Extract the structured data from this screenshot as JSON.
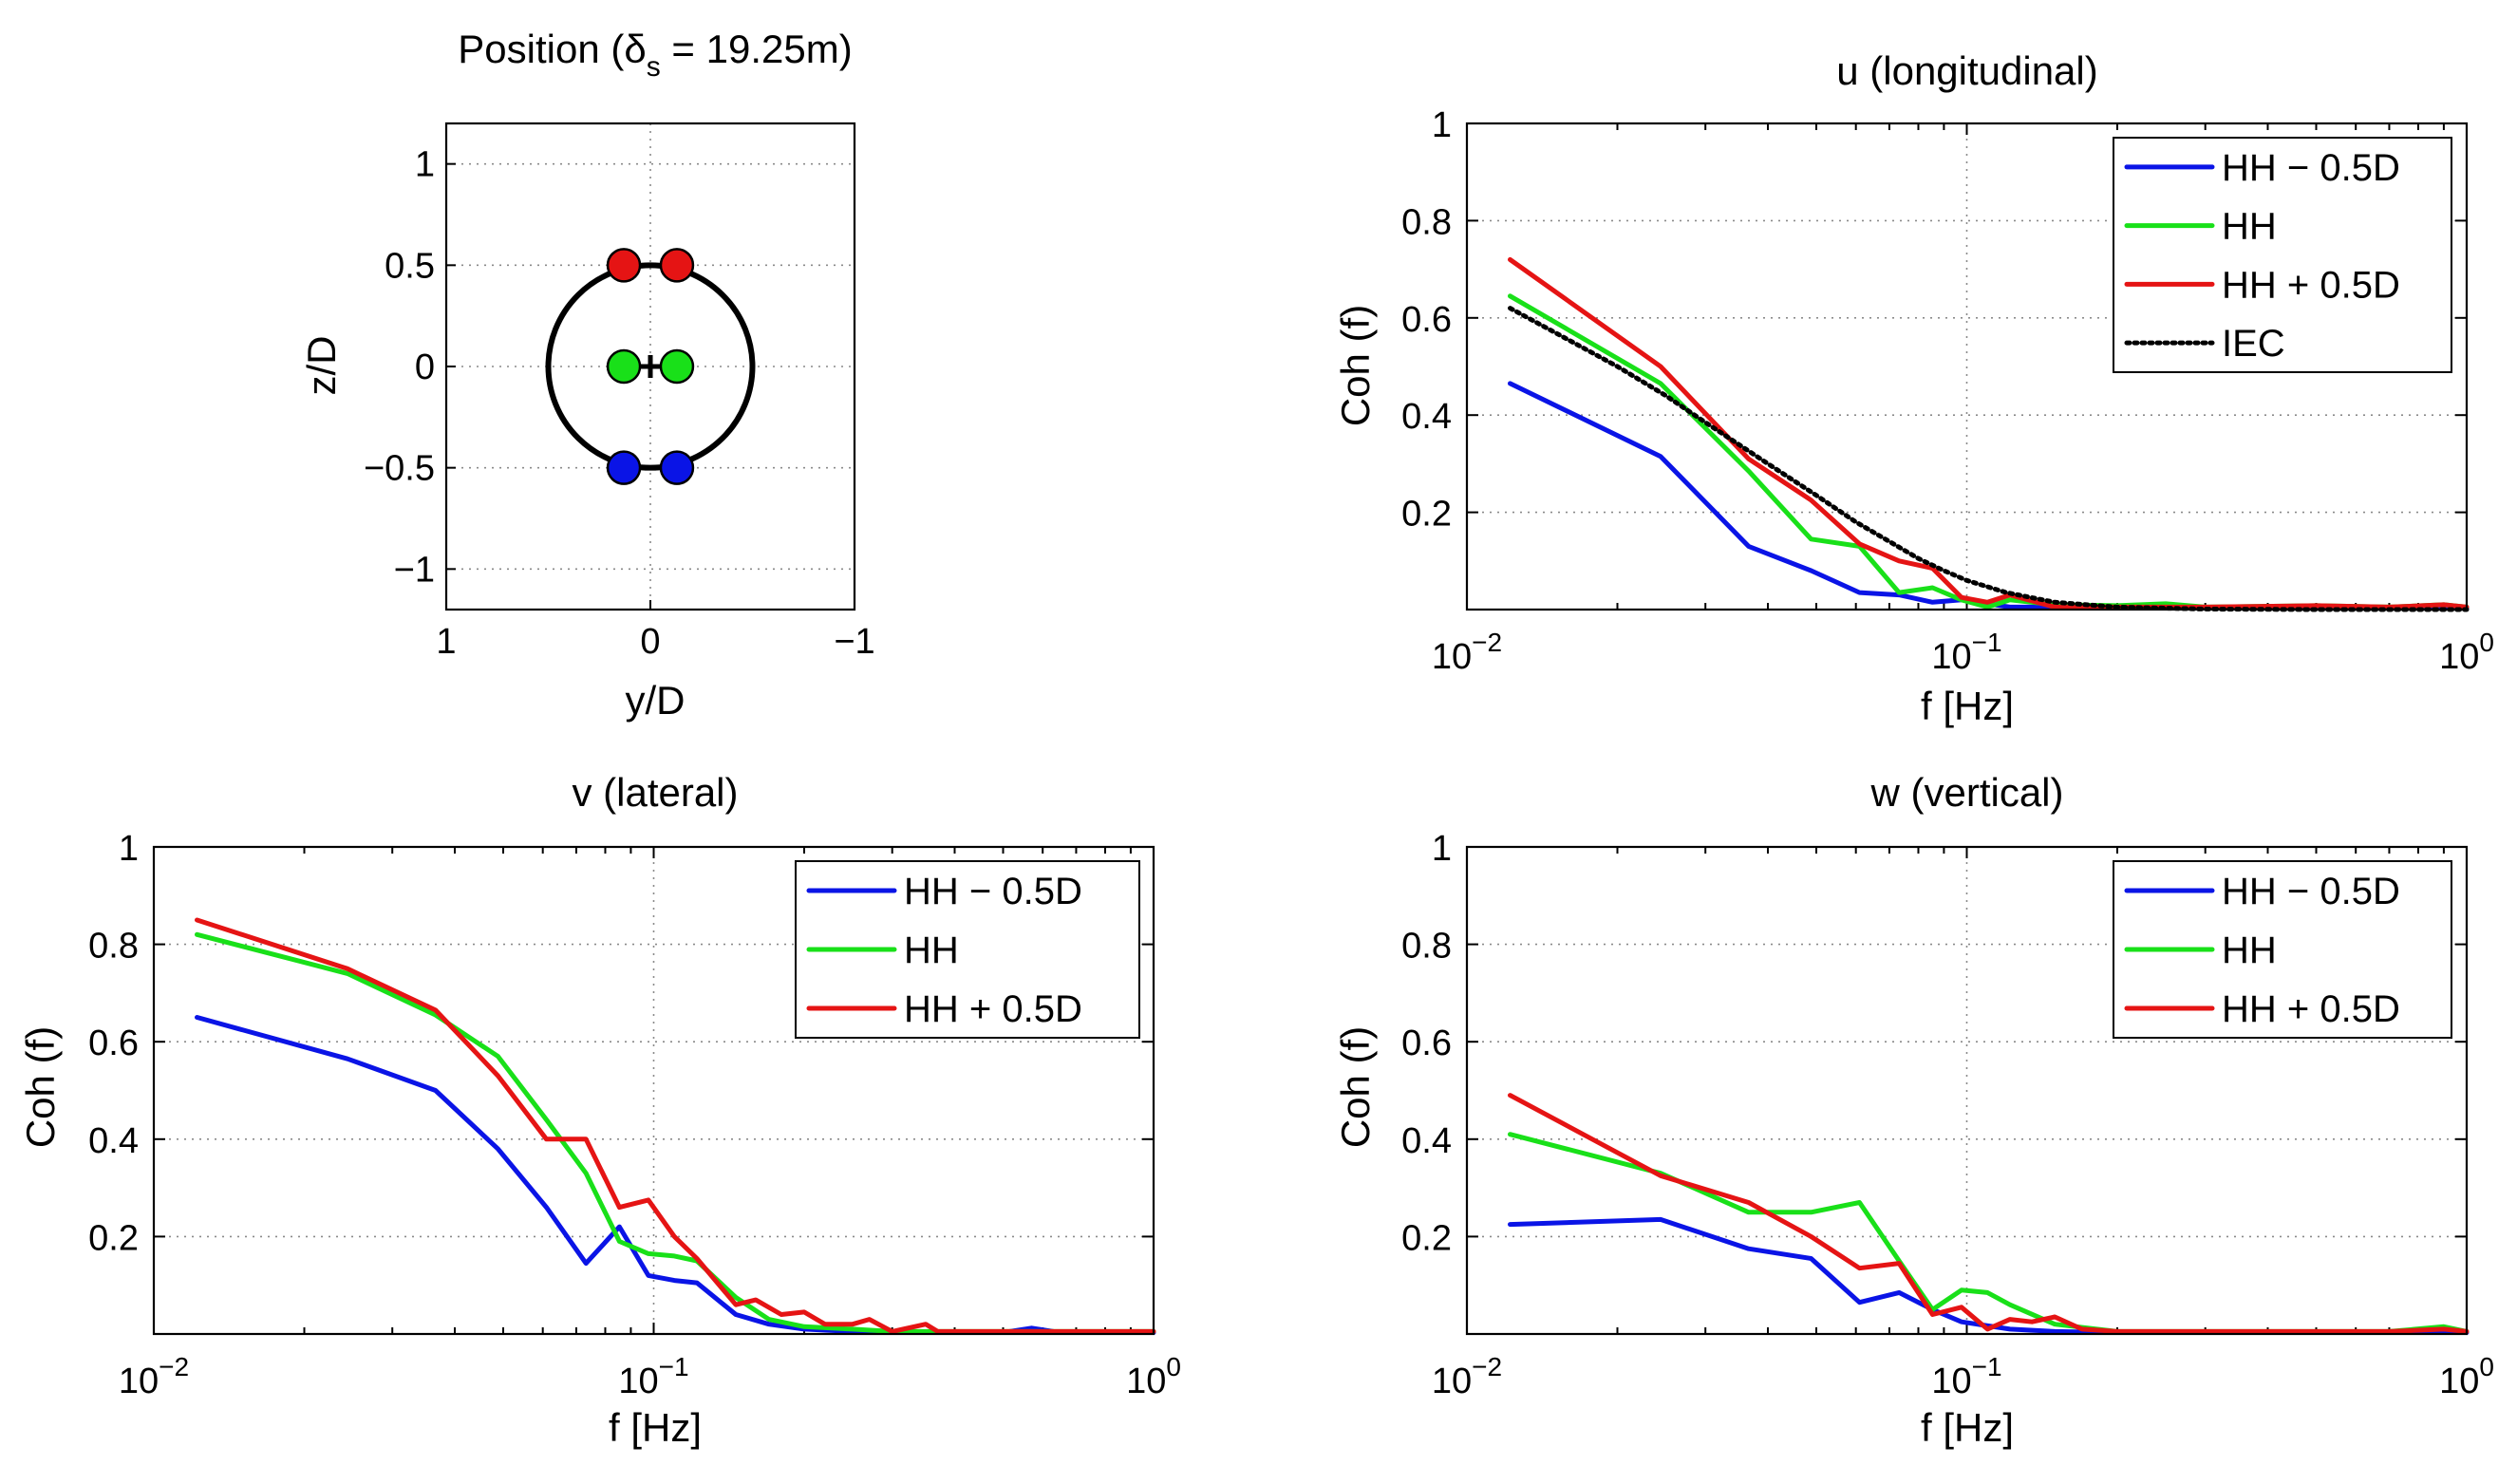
{
  "colors": {
    "blue": "#0a14e6",
    "green": "#19e019",
    "red": "#e51414",
    "iec": "#000000",
    "rotor": "#000000"
  },
  "chart_data": [
    {
      "id": "position",
      "type": "scatter",
      "title_main": "Position (δ",
      "title_sub": "s",
      "title_tail": " = 19.25m)",
      "xlabel": "y/D",
      "ylabel": "z/D",
      "xlim": [
        1,
        -1
      ],
      "ylim": [
        -1.2,
        1.2
      ],
      "x_ticks": [
        1,
        0,
        -1
      ],
      "x_tick_labels": [
        "1",
        "0",
        "−1"
      ],
      "y_ticks": [
        -1,
        -0.5,
        0,
        0.5,
        1
      ],
      "y_tick_labels": [
        "−1",
        "−0.5",
        "0",
        "0.5",
        "1"
      ],
      "rotor_radius": 0.5,
      "points": [
        {
          "y": 0.13,
          "z": 0.5,
          "color": "red"
        },
        {
          "y": -0.13,
          "z": 0.5,
          "color": "red"
        },
        {
          "y": 0.13,
          "z": 0,
          "color": "green"
        },
        {
          "y": -0.13,
          "z": 0,
          "color": "green"
        },
        {
          "y": 0.13,
          "z": -0.5,
          "color": "blue"
        },
        {
          "y": -0.13,
          "z": -0.5,
          "color": "blue"
        }
      ]
    },
    {
      "id": "u",
      "type": "line",
      "title": "u (longitudinal)",
      "xlabel": "f  [Hz]",
      "ylabel": "Coh (f)",
      "xscale": "log",
      "xlim": [
        0.01,
        1
      ],
      "ylim": [
        0,
        1
      ],
      "x_tick_labels": [
        {
          "base": "10",
          "exp": "−2"
        },
        {
          "base": "10",
          "exp": "−1"
        },
        {
          "base": "10",
          "exp": "0"
        }
      ],
      "y_ticks": [
        0.2,
        0.4,
        0.6,
        0.8,
        1
      ],
      "y_tick_labels": [
        "0.2",
        "0.4",
        "0.6",
        "0.8",
        "1"
      ],
      "legend_position": "top-right",
      "series": [
        {
          "name": "HH − 0.5D",
          "color": "blue",
          "style": "solid",
          "x": [
            0.0122,
            0.0244,
            0.0366,
            0.0488,
            0.061,
            0.0732,
            0.0854,
            0.0976,
            0.122,
            0.15,
            0.2,
            0.3,
            0.5,
            0.7,
            1.0
          ],
          "y": [
            0.465,
            0.315,
            0.13,
            0.08,
            0.035,
            0.03,
            0.015,
            0.02,
            0.005,
            0.005,
            0.005,
            0.003,
            0.003,
            0.003,
            0.003
          ]
        },
        {
          "name": "HH",
          "color": "green",
          "style": "solid",
          "x": [
            0.0122,
            0.0244,
            0.0366,
            0.0488,
            0.061,
            0.0732,
            0.0854,
            0.0976,
            0.11,
            0.122,
            0.15,
            0.2,
            0.25,
            0.3,
            0.5,
            0.7,
            0.9,
            1.0
          ],
          "y": [
            0.645,
            0.465,
            0.285,
            0.145,
            0.13,
            0.035,
            0.045,
            0.02,
            0.005,
            0.02,
            0.01,
            0.008,
            0.012,
            0.005,
            0.008,
            0.005,
            0.01,
            0.005
          ]
        },
        {
          "name": "HH + 0.5D",
          "color": "red",
          "style": "solid",
          "x": [
            0.0122,
            0.0244,
            0.0366,
            0.0488,
            0.061,
            0.0732,
            0.0854,
            0.0976,
            0.11,
            0.122,
            0.15,
            0.2,
            0.3,
            0.5,
            0.7,
            0.9,
            1.0
          ],
          "y": [
            0.72,
            0.5,
            0.31,
            0.225,
            0.135,
            0.1,
            0.085,
            0.025,
            0.015,
            0.03,
            0.005,
            0.005,
            0.005,
            0.008,
            0.005,
            0.01,
            0.005
          ]
        },
        {
          "name": "IEC",
          "color": "iec",
          "style": "dotted",
          "x": [
            0.0122,
            0.015,
            0.02,
            0.025,
            0.03,
            0.04,
            0.05,
            0.06,
            0.07,
            0.08,
            0.09,
            0.1,
            0.12,
            0.15,
            0.2,
            0.3,
            0.5,
            1.0
          ],
          "y": [
            0.62,
            0.57,
            0.5,
            0.44,
            0.385,
            0.3,
            0.235,
            0.18,
            0.14,
            0.105,
            0.08,
            0.06,
            0.035,
            0.015,
            0.005,
            0.001,
            0.0,
            0.0
          ]
        }
      ]
    },
    {
      "id": "v",
      "type": "line",
      "title": "v (lateral)",
      "xlabel": "f  [Hz]",
      "ylabel": "Coh (f)",
      "xscale": "log",
      "xlim": [
        0.01,
        1
      ],
      "ylim": [
        0,
        1
      ],
      "x_tick_labels": [
        {
          "base": "10",
          "exp": "−2"
        },
        {
          "base": "10",
          "exp": "−1"
        },
        {
          "base": "10",
          "exp": "0"
        }
      ],
      "y_ticks": [
        0.2,
        0.4,
        0.6,
        0.8,
        1
      ],
      "y_tick_labels": [
        "0.2",
        "0.4",
        "0.6",
        "0.8",
        "1"
      ],
      "legend_position": "top-right",
      "series": [
        {
          "name": "HH − 0.5D",
          "color": "blue",
          "style": "solid",
          "x": [
            0.0122,
            0.0244,
            0.0366,
            0.0488,
            0.061,
            0.0732,
            0.0854,
            0.0976,
            0.11,
            0.122,
            0.146,
            0.17,
            0.2,
            0.25,
            0.3,
            0.4,
            0.5,
            0.57,
            0.65,
            0.8,
            1.0
          ],
          "y": [
            0.65,
            0.565,
            0.5,
            0.38,
            0.26,
            0.145,
            0.22,
            0.12,
            0.11,
            0.105,
            0.04,
            0.02,
            0.01,
            0.005,
            0.003,
            0.003,
            0.003,
            0.012,
            0.003,
            0.003,
            0.003
          ]
        },
        {
          "name": "HH",
          "color": "green",
          "style": "solid",
          "x": [
            0.0122,
            0.0244,
            0.0366,
            0.0488,
            0.061,
            0.0732,
            0.0854,
            0.0976,
            0.11,
            0.122,
            0.146,
            0.17,
            0.2,
            0.25,
            0.3,
            0.4,
            0.6,
            0.8,
            1.0
          ],
          "y": [
            0.82,
            0.74,
            0.655,
            0.57,
            0.44,
            0.33,
            0.19,
            0.165,
            0.16,
            0.15,
            0.075,
            0.03,
            0.015,
            0.01,
            0.005,
            0.005,
            0.005,
            0.005,
            0.005
          ]
        },
        {
          "name": "HH + 0.5D",
          "color": "red",
          "style": "solid",
          "x": [
            0.0122,
            0.0244,
            0.0366,
            0.0488,
            0.061,
            0.0732,
            0.0854,
            0.0976,
            0.11,
            0.122,
            0.146,
            0.16,
            0.18,
            0.2,
            0.22,
            0.25,
            0.27,
            0.3,
            0.35,
            0.37,
            0.4,
            0.6,
            0.8,
            1.0
          ],
          "y": [
            0.85,
            0.75,
            0.665,
            0.53,
            0.4,
            0.4,
            0.26,
            0.275,
            0.2,
            0.155,
            0.06,
            0.07,
            0.04,
            0.045,
            0.02,
            0.02,
            0.03,
            0.005,
            0.02,
            0.005,
            0.005,
            0.005,
            0.005,
            0.005
          ]
        }
      ]
    },
    {
      "id": "w",
      "type": "line",
      "title": "w (vertical)",
      "xlabel": "f  [Hz]",
      "ylabel": "Coh (f)",
      "xscale": "log",
      "xlim": [
        0.01,
        1
      ],
      "ylim": [
        0,
        1
      ],
      "x_tick_labels": [
        {
          "base": "10",
          "exp": "−2"
        },
        {
          "base": "10",
          "exp": "−1"
        },
        {
          "base": "10",
          "exp": "0"
        }
      ],
      "y_ticks": [
        0.2,
        0.4,
        0.6,
        0.8,
        1
      ],
      "y_tick_labels": [
        "0.2",
        "0.4",
        "0.6",
        "0.8",
        "1"
      ],
      "legend_position": "top-right",
      "series": [
        {
          "name": "HH − 0.5D",
          "color": "blue",
          "style": "solid",
          "x": [
            0.0122,
            0.0244,
            0.0366,
            0.0488,
            0.061,
            0.0732,
            0.0854,
            0.0976,
            0.122,
            0.15,
            0.2,
            0.3,
            0.5,
            0.7,
            1.0
          ],
          "y": [
            0.225,
            0.235,
            0.175,
            0.155,
            0.065,
            0.085,
            0.05,
            0.025,
            0.01,
            0.005,
            0.003,
            0.003,
            0.003,
            0.003,
            0.003
          ]
        },
        {
          "name": "HH",
          "color": "green",
          "style": "solid",
          "x": [
            0.0122,
            0.0244,
            0.0366,
            0.0488,
            0.061,
            0.0732,
            0.0854,
            0.0976,
            0.11,
            0.122,
            0.15,
            0.2,
            0.3,
            0.5,
            0.7,
            0.9,
            1.0
          ],
          "y": [
            0.41,
            0.33,
            0.25,
            0.25,
            0.27,
            0.15,
            0.05,
            0.09,
            0.085,
            0.06,
            0.02,
            0.005,
            0.005,
            0.005,
            0.005,
            0.015,
            0.005
          ]
        },
        {
          "name": "HH + 0.5D",
          "color": "red",
          "style": "solid",
          "x": [
            0.0122,
            0.0244,
            0.0366,
            0.0488,
            0.061,
            0.0732,
            0.0854,
            0.0976,
            0.11,
            0.122,
            0.135,
            0.15,
            0.17,
            0.2,
            0.3,
            0.5,
            0.7,
            0.9,
            1.0
          ],
          "y": [
            0.49,
            0.325,
            0.27,
            0.2,
            0.135,
            0.145,
            0.04,
            0.055,
            0.01,
            0.03,
            0.025,
            0.035,
            0.01,
            0.005,
            0.005,
            0.005,
            0.005,
            0.01,
            0.005
          ]
        }
      ]
    }
  ]
}
